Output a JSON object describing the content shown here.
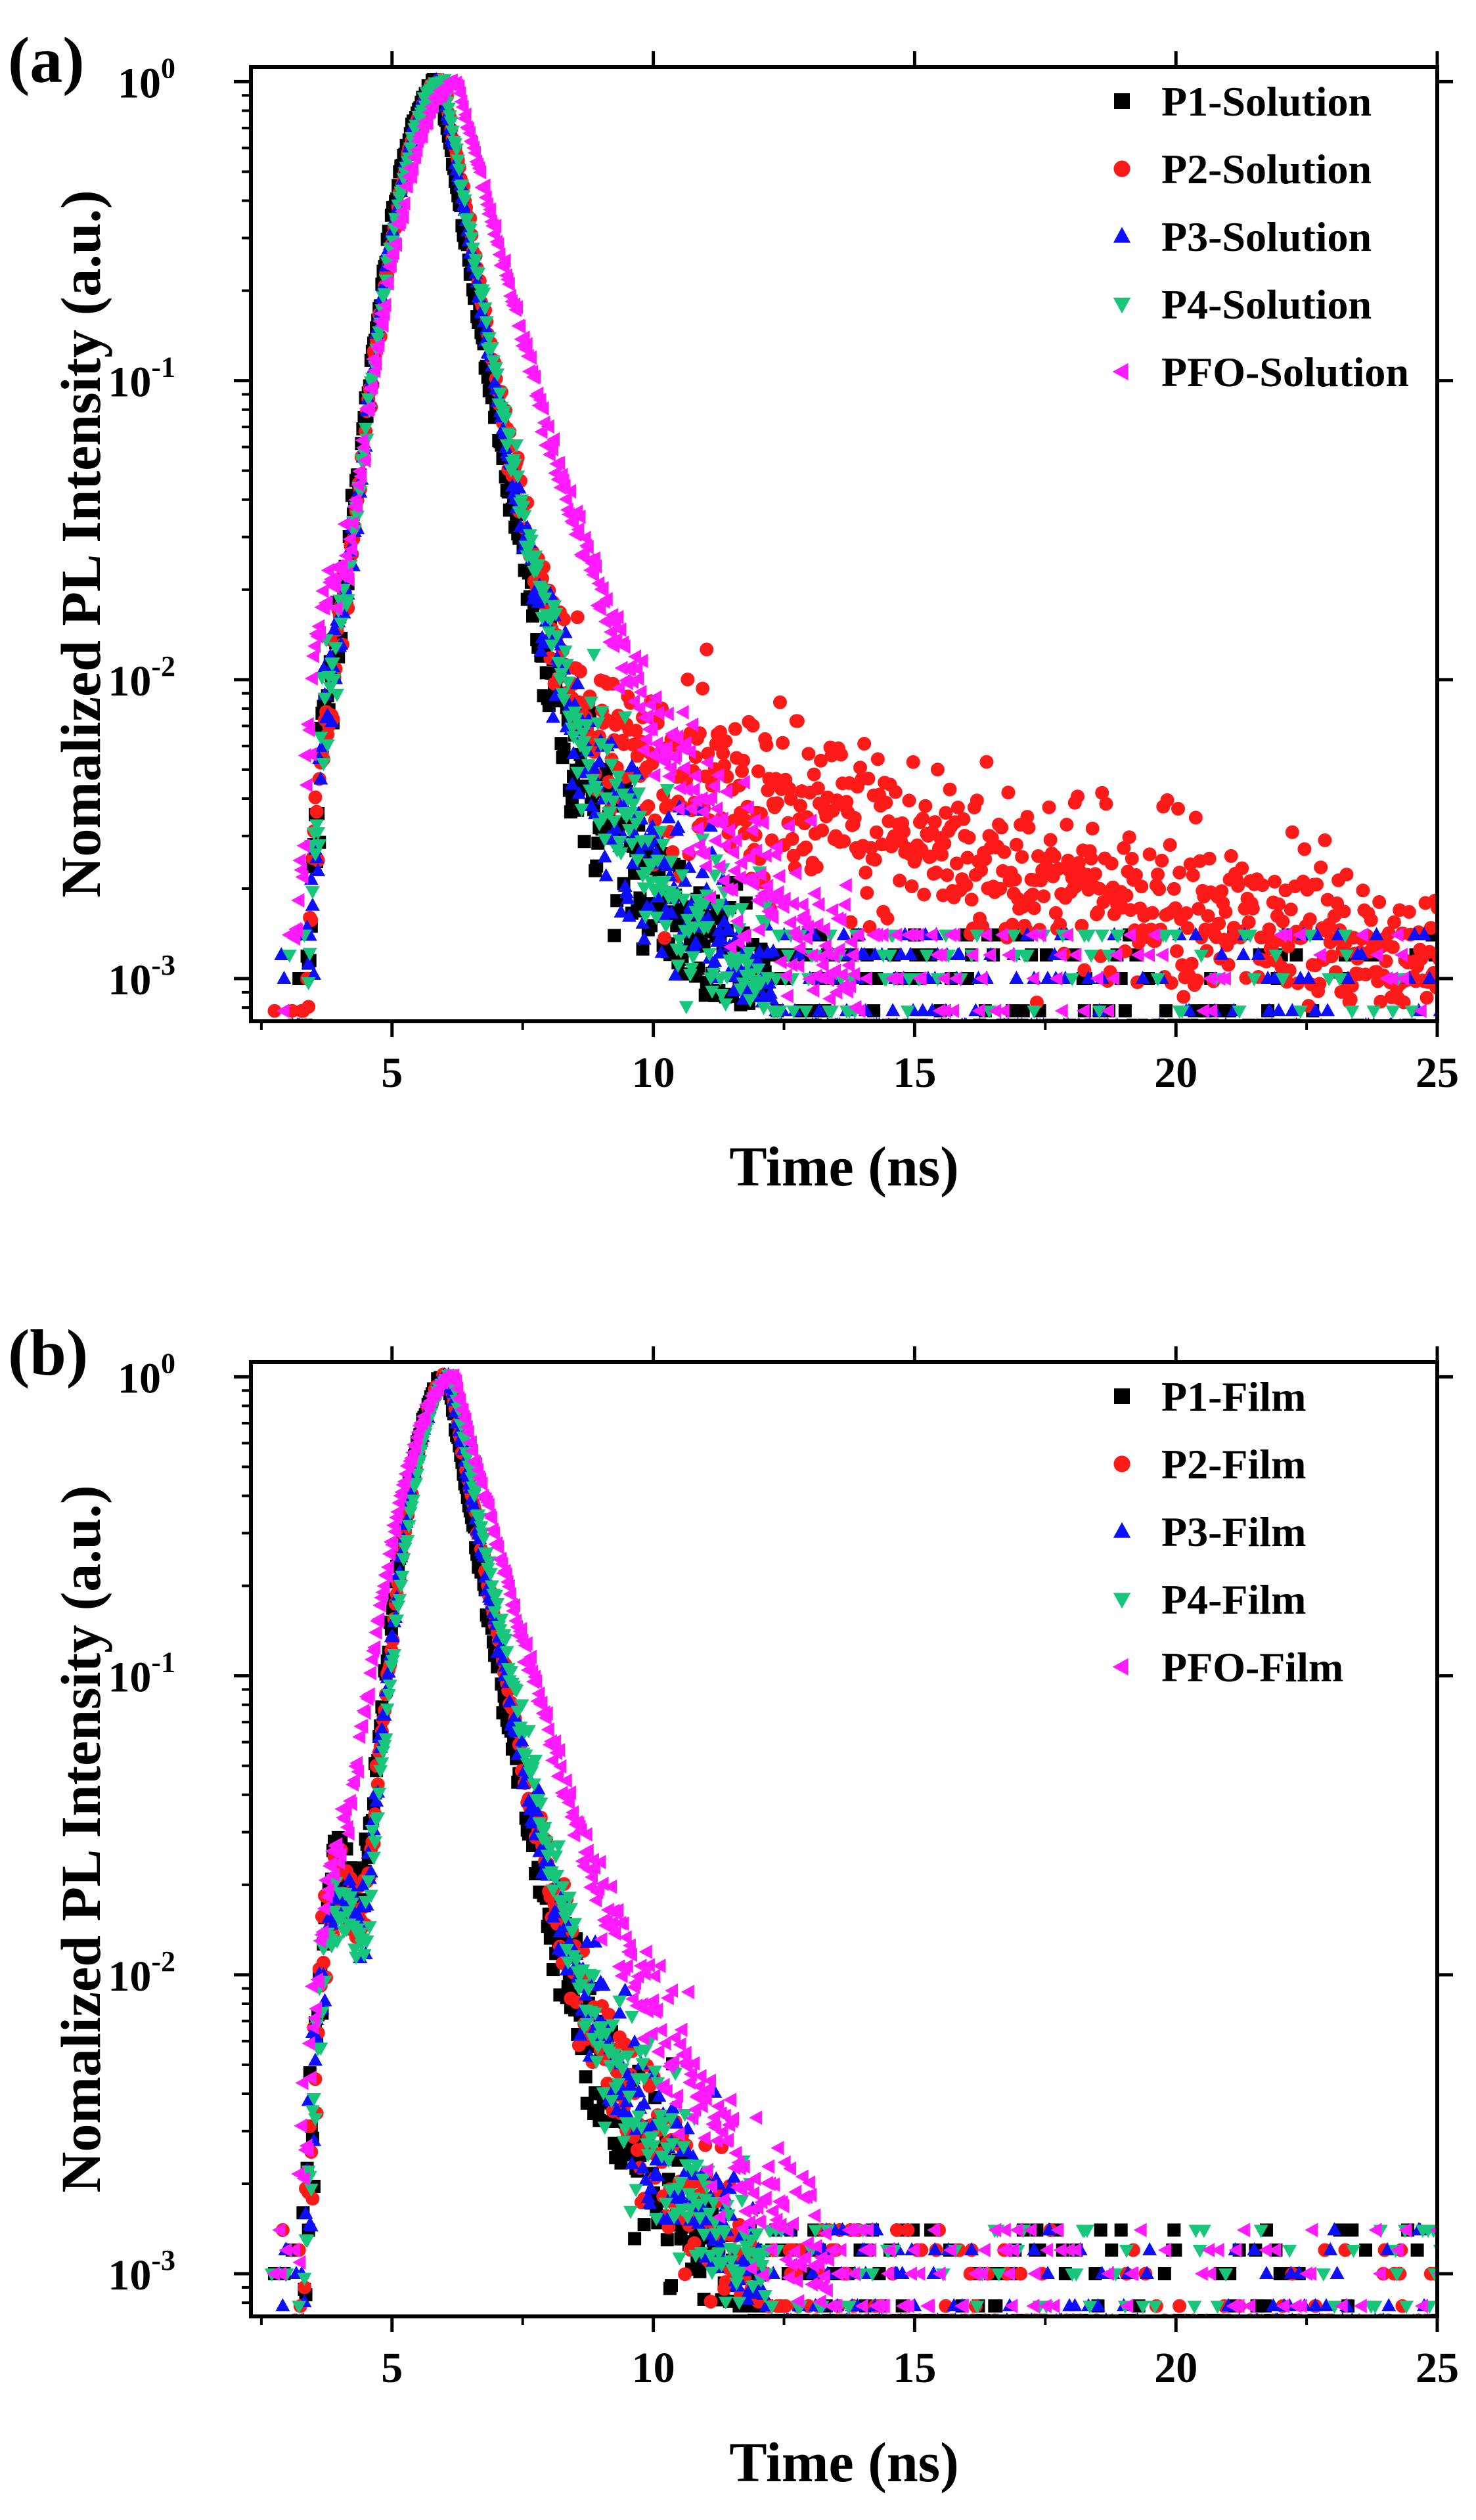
{
  "chart_data": [
    {
      "type": "scatter",
      "panel_label": "(a)",
      "xlabel": "Time (ns)",
      "ylabel": "Nomalized PL Intensity (a.u.)",
      "xlim": [
        2.3,
        25
      ],
      "ylim": [
        0.00072,
        1.12
      ],
      "yscale": "log",
      "x_ticks": [
        "5",
        "10",
        "15",
        "20",
        "25"
      ],
      "y_ticks": [
        {
          "base": "10",
          "exp": "0"
        },
        {
          "base": "10",
          "exp": "-1"
        },
        {
          "base": "10",
          "exp": "-2"
        },
        {
          "base": "10",
          "exp": "-3"
        }
      ],
      "legend_position": "top-right",
      "series": [
        {
          "name": "P1-Solution",
          "color": "#000000",
          "marker": "square",
          "params": {
            "peak": 5.9,
            "rise": 0.62,
            "tau1": 0.4,
            "tau2": 1.3,
            "a2": 0.018,
            "tau3": 5.0,
            "a3": 0.0028,
            "pre_t": 4.0,
            "pre_a": 0.008,
            "noise": 0.32,
            "floor": 0.0009
          }
        },
        {
          "name": "P2-Solution",
          "color": "#ff1a1a",
          "marker": "circle",
          "params": {
            "peak": 6.0,
            "rise": 0.64,
            "tau1": 0.42,
            "tau2": 1.2,
            "a2": 0.018,
            "tau3": 14.0,
            "a3": 0.006,
            "pre_t": 4.0,
            "pre_a": 0.007,
            "noise": 0.34,
            "floor": 0.0009
          }
        },
        {
          "name": "P3-Solution",
          "color": "#0d0dff",
          "marker": "triangle-up",
          "params": {
            "peak": 5.95,
            "rise": 0.62,
            "tau1": 0.42,
            "tau2": 1.4,
            "a2": 0.02,
            "tau3": 4.5,
            "a3": 0.003,
            "pre_t": 4.0,
            "pre_a": 0.009,
            "noise": 0.32,
            "floor": 0.0009
          }
        },
        {
          "name": "P4-Solution",
          "color": "#17c67a",
          "marker": "triangle-down",
          "params": {
            "peak": 6.0,
            "rise": 0.64,
            "tau1": 0.42,
            "tau2": 1.4,
            "a2": 0.02,
            "tau3": 4.5,
            "a3": 0.0028,
            "pre_t": 4.0,
            "pre_a": 0.008,
            "noise": 0.32,
            "floor": 0.0009
          }
        },
        {
          "name": "PFO-Solution",
          "color": "#ff1aff",
          "marker": "triangle-left",
          "params": {
            "peak": 6.25,
            "rise": 0.75,
            "tau1": 0.6,
            "tau2": 1.6,
            "a2": 0.04,
            "tau3": 4.5,
            "a3": 0.004,
            "pre_t": 3.8,
            "pre_a": 0.016,
            "noise": 0.3,
            "floor": 0.001
          }
        }
      ]
    },
    {
      "type": "scatter",
      "panel_label": "(b)",
      "xlabel": "Time (ns)",
      "ylabel": "Nomalized PL Intensity (a.u.)",
      "xlim": [
        2.3,
        25
      ],
      "ylim": [
        0.00072,
        1.12
      ],
      "yscale": "log",
      "x_ticks": [
        "5",
        "10",
        "15",
        "20",
        "25"
      ],
      "y_ticks": [
        {
          "base": "10",
          "exp": "0"
        },
        {
          "base": "10",
          "exp": "-1"
        },
        {
          "base": "10",
          "exp": "-2"
        },
        {
          "base": "10",
          "exp": "-3"
        }
      ],
      "legend_position": "top-right",
      "series": [
        {
          "name": "P1-Film",
          "color": "#000000",
          "marker": "square",
          "params": {
            "peak": 6.05,
            "rise": 0.55,
            "tau1": 0.42,
            "tau2": 1.2,
            "a2": 0.022,
            "tau3": 2.8,
            "a3": 0.005,
            "pre_t": 4.0,
            "pre_a": 0.022,
            "noise": 0.3,
            "floor": 0.0009
          }
        },
        {
          "name": "P2-Film",
          "color": "#ff1a1a",
          "marker": "circle",
          "params": {
            "peak": 6.1,
            "rise": 0.55,
            "tau1": 0.44,
            "tau2": 1.3,
            "a2": 0.024,
            "tau3": 3.0,
            "a3": 0.005,
            "pre_t": 4.0,
            "pre_a": 0.02,
            "noise": 0.3,
            "floor": 0.0009
          }
        },
        {
          "name": "P3-Film",
          "color": "#0d0dff",
          "marker": "triangle-up",
          "params": {
            "peak": 6.1,
            "rise": 0.55,
            "tau1": 0.44,
            "tau2": 1.3,
            "a2": 0.028,
            "tau3": 3.0,
            "a3": 0.005,
            "pre_t": 4.0,
            "pre_a": 0.018,
            "noise": 0.3,
            "floor": 0.0009
          }
        },
        {
          "name": "P4-Film",
          "color": "#17c67a",
          "marker": "triangle-down",
          "params": {
            "peak": 6.15,
            "rise": 0.55,
            "tau1": 0.46,
            "tau2": 1.3,
            "a2": 0.026,
            "tau3": 3.0,
            "a3": 0.005,
            "pre_t": 4.0,
            "pre_a": 0.017,
            "noise": 0.3,
            "floor": 0.0009
          }
        },
        {
          "name": "PFO-Film",
          "color": "#ff1aff",
          "marker": "triangle-left",
          "params": {
            "peak": 6.2,
            "rise": 0.75,
            "tau1": 0.6,
            "tau2": 1.5,
            "a2": 0.05,
            "tau3": 3.2,
            "a3": 0.006,
            "pre_t": 3.9,
            "pre_a": 0.016,
            "noise": 0.28,
            "floor": 0.001
          }
        }
      ]
    }
  ]
}
